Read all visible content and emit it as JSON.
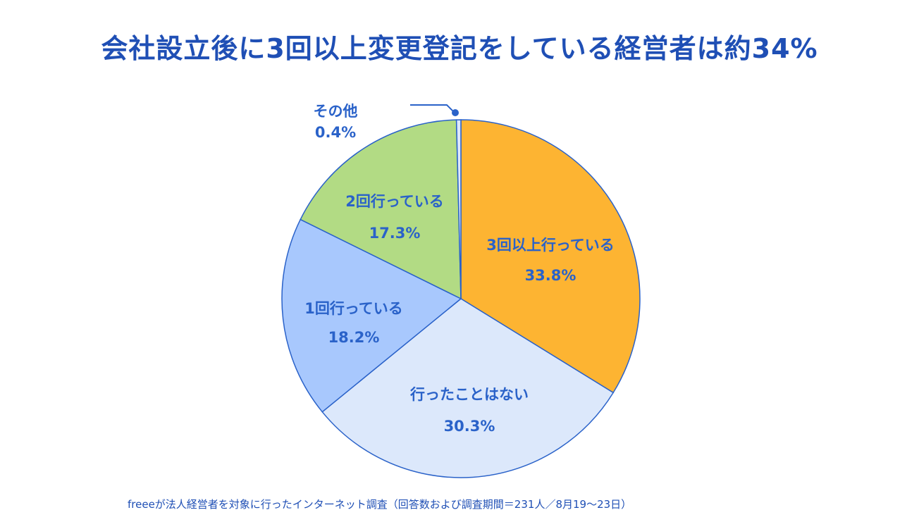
{
  "header": {
    "title": "会社設立後に3回以上変更登記をしている経営者は約34%"
  },
  "chart_data": {
    "type": "pie",
    "title": "会社設立後に3回以上変更登記をしている経営者は約34%",
    "slices": [
      {
        "label": "3回以上行っている",
        "value_label": "33.8%",
        "value": 33.8,
        "color": "#fdb432"
      },
      {
        "label": "行ったことはない",
        "value_label": "30.3%",
        "value": 30.3,
        "color": "#dce8fb"
      },
      {
        "label": "1回行っている",
        "value_label": "18.2%",
        "value": 18.2,
        "color": "#a8c8fd"
      },
      {
        "label": "2回行っている",
        "value_label": "17.3%",
        "value": 17.3,
        "color": "#b2db84"
      },
      {
        "label": "その他",
        "value_label": "0.4%",
        "value": 0.4,
        "color": "#dce8fb"
      }
    ],
    "stroke_color": "#2a62c9",
    "start": "12 o'clock",
    "direction": "clockwise"
  },
  "footnote": "freeeが法人経営者を対象に行ったインターネット調査（回答数および調査期間＝231人／8月19〜23日）"
}
